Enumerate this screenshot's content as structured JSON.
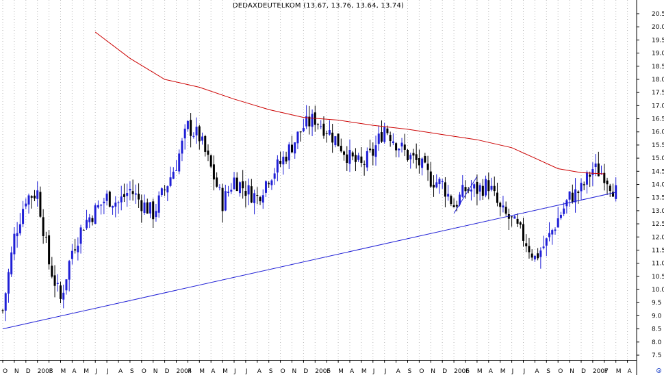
{
  "chart_data": {
    "type": "candlestick",
    "title": "DEDAXDEUTELKOM (13.67, 13.76, 13.64, 13.74)",
    "ylim": [
      7.5,
      20.5
    ],
    "y_ticks": [
      "7.5",
      "8.0",
      "8.5",
      "9.0",
      "9.5",
      "10.0",
      "10.5",
      "11.0",
      "11.5",
      "12.0",
      "12.5",
      "13.0",
      "13.5",
      "14.0",
      "14.5",
      "15.0",
      "15.5",
      "16.0",
      "16.5",
      "17.0",
      "17.5",
      "18.0",
      "18.5",
      "19.0",
      "19.5",
      "20.0",
      "20.5"
    ],
    "x_ticks": [
      "O",
      "N",
      "D",
      "2003",
      "F",
      "M",
      "A",
      "M",
      "J",
      "J",
      "A",
      "S",
      "O",
      "N",
      "D",
      "2004",
      "F",
      "M",
      "A",
      "M",
      "J",
      "J",
      "A",
      "S",
      "O",
      "N",
      "D",
      "2005",
      "F",
      "M",
      "A",
      "M",
      "J",
      "J",
      "A",
      "S",
      "O",
      "N",
      "D",
      "2006",
      "F",
      "M",
      "A",
      "M",
      "J",
      "J",
      "A",
      "S",
      "O",
      "N",
      "D",
      "2007",
      "F",
      "M",
      "A"
    ],
    "grid": true,
    "colors": {
      "up": "#1f1fd6",
      "down": "#000000",
      "moving_average": "#cc0000",
      "trendline": "#1f1fd6",
      "grid": "#b8b8b8"
    },
    "moving_average": [
      [
        "2003-06",
        19.8
      ],
      [
        "2003-09",
        18.8
      ],
      [
        "2003-12",
        18.0
      ],
      [
        "2004-03",
        17.7
      ],
      [
        "2004-06",
        17.25
      ],
      [
        "2004-09",
        16.85
      ],
      [
        "2004-12",
        16.55
      ],
      [
        "2005-03",
        16.45
      ],
      [
        "2005-06",
        16.25
      ],
      [
        "2005-09",
        16.1
      ],
      [
        "2005-12",
        15.9
      ],
      [
        "2006-03",
        15.7
      ],
      [
        "2006-06",
        15.4
      ],
      [
        "2006-08",
        15.0
      ],
      [
        "2006-10",
        14.6
      ],
      [
        "2006-12",
        14.45
      ],
      [
        "2007-02",
        14.4
      ]
    ],
    "trendlines": [
      {
        "from": [
          "2002-10",
          8.5
        ],
        "to": [
          "2007-03",
          13.7
        ]
      },
      {
        "from": [
          "2006-01",
          12.9
        ],
        "to": [
          "2006-03",
          14.3
        ]
      }
    ],
    "anchors": [
      [
        "2002-10",
        9.2
      ],
      [
        "2002-11",
        12.0
      ],
      [
        "2002-12",
        13.5
      ],
      [
        "2003-01",
        13.7
      ],
      [
        "2003-02",
        11.0
      ],
      [
        "2003-03",
        9.6
      ],
      [
        "2003-04",
        11.5
      ],
      [
        "2003-05",
        12.5
      ],
      [
        "2003-06",
        13.0
      ],
      [
        "2003-07",
        13.5
      ],
      [
        "2003-08",
        13.3
      ],
      [
        "2003-09",
        13.8
      ],
      [
        "2003-10",
        13.3
      ],
      [
        "2003-11",
        12.9
      ],
      [
        "2003-12",
        13.8
      ],
      [
        "2004-01",
        14.8
      ],
      [
        "2004-02",
        16.2
      ],
      [
        "2004-03",
        15.8
      ],
      [
        "2004-04",
        14.6
      ],
      [
        "2004-05",
        13.3
      ],
      [
        "2004-06",
        14.2
      ],
      [
        "2004-07",
        13.8
      ],
      [
        "2004-08",
        13.5
      ],
      [
        "2004-09",
        14.3
      ],
      [
        "2004-10",
        14.8
      ],
      [
        "2004-11",
        15.5
      ],
      [
        "2004-12",
        16.2
      ],
      [
        "2005-01",
        16.5
      ],
      [
        "2005-02",
        16.1
      ],
      [
        "2005-03",
        15.6
      ],
      [
        "2005-04",
        15.0
      ],
      [
        "2005-05",
        14.7
      ],
      [
        "2005-06",
        15.2
      ],
      [
        "2005-07",
        16.2
      ],
      [
        "2005-08",
        15.6
      ],
      [
        "2005-09",
        15.1
      ],
      [
        "2005-10",
        14.8
      ],
      [
        "2005-11",
        14.2
      ],
      [
        "2005-12",
        14.0
      ],
      [
        "2006-01",
        13.2
      ],
      [
        "2006-02",
        13.8
      ],
      [
        "2006-03",
        13.8
      ],
      [
        "2006-04",
        14.0
      ],
      [
        "2006-05",
        13.0
      ],
      [
        "2006-06",
        12.6
      ],
      [
        "2006-07",
        12.0
      ],
      [
        "2006-08",
        11.2
      ],
      [
        "2006-09",
        11.8
      ],
      [
        "2006-10",
        12.7
      ],
      [
        "2006-11",
        13.5
      ],
      [
        "2006-12",
        13.8
      ],
      [
        "2007-01",
        14.6
      ],
      [
        "2007-02",
        14.4
      ],
      [
        "2007-03",
        13.7
      ]
    ]
  }
}
